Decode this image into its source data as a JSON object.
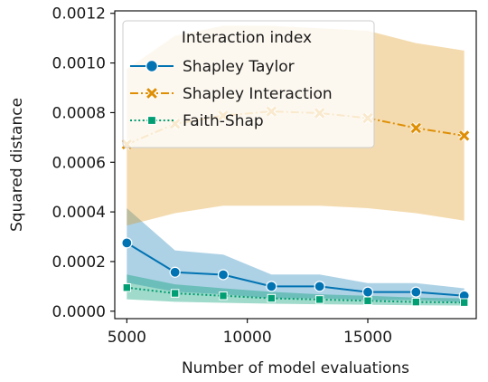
{
  "chart_data": {
    "type": "line",
    "xlabel": "Number of model evaluations",
    "ylabel": "Squared distance",
    "xlim": [
      4500,
      19500
    ],
    "ylim": [
      -3e-05,
      0.00121
    ],
    "xticks": [
      5000,
      10000,
      15000
    ],
    "xtick_labels": [
      "5000",
      "10000",
      "15000"
    ],
    "yticks": [
      0.0,
      0.0002,
      0.0004,
      0.0006,
      0.0008,
      0.001,
      0.0012
    ],
    "ytick_labels": [
      "0.0000",
      "0.0002",
      "0.0004",
      "0.0006",
      "0.0008",
      "0.0010",
      "0.0012"
    ],
    "grid": false,
    "legend": {
      "title": "Interaction index",
      "position": "top-left"
    },
    "x": [
      5000,
      7000,
      9000,
      11000,
      13000,
      15000,
      17000,
      19000
    ],
    "series": [
      {
        "name": "Shapley Taylor",
        "color": "#0173b2",
        "linestyle": "solid",
        "marker": "circle",
        "values": [
          0.000275,
          0.000157,
          0.000147,
          0.0001,
          0.0001,
          7.7e-05,
          7.7e-05,
          6.2e-05
        ],
        "ci_lower": [
          0.000115,
          7.8e-05,
          6.8e-05,
          5.2e-05,
          5.2e-05,
          4.5e-05,
          4.5e-05,
          3.6e-05
        ],
        "ci_upper": [
          0.000415,
          0.000245,
          0.000228,
          0.000148,
          0.000148,
          0.000113,
          0.000113,
          9.2e-05
        ]
      },
      {
        "name": "Shapley Interaction",
        "color": "#de8f05",
        "linestyle": "dashdot",
        "marker": "x",
        "values": [
          0.000672,
          0.000755,
          0.000788,
          0.000805,
          0.000798,
          0.000778,
          0.000738,
          0.000707
        ],
        "ci_lower": [
          0.000345,
          0.000395,
          0.000425,
          0.000425,
          0.000425,
          0.000415,
          0.000395,
          0.000365
        ],
        "ci_upper": [
          0.000975,
          0.00111,
          0.00115,
          0.00115,
          0.00114,
          0.00113,
          0.00108,
          0.00105
        ]
      },
      {
        "name": "Faith-Shap",
        "color": "#029e73",
        "linestyle": "dotted",
        "marker": "square",
        "values": [
          9.5e-05,
          7.2e-05,
          6.2e-05,
          5.2e-05,
          4.7e-05,
          4.2e-05,
          3.7e-05,
          3.5e-05
        ],
        "ci_lower": [
          4.8e-05,
          3.8e-05,
          3.4e-05,
          3e-05,
          2.8e-05,
          2.6e-05,
          2.4e-05,
          2.3e-05
        ],
        "ci_upper": [
          0.000148,
          0.000108,
          9.2e-05,
          7.8e-05,
          6.8e-05,
          6.2e-05,
          5.5e-05,
          5.2e-05
        ]
      }
    ]
  }
}
